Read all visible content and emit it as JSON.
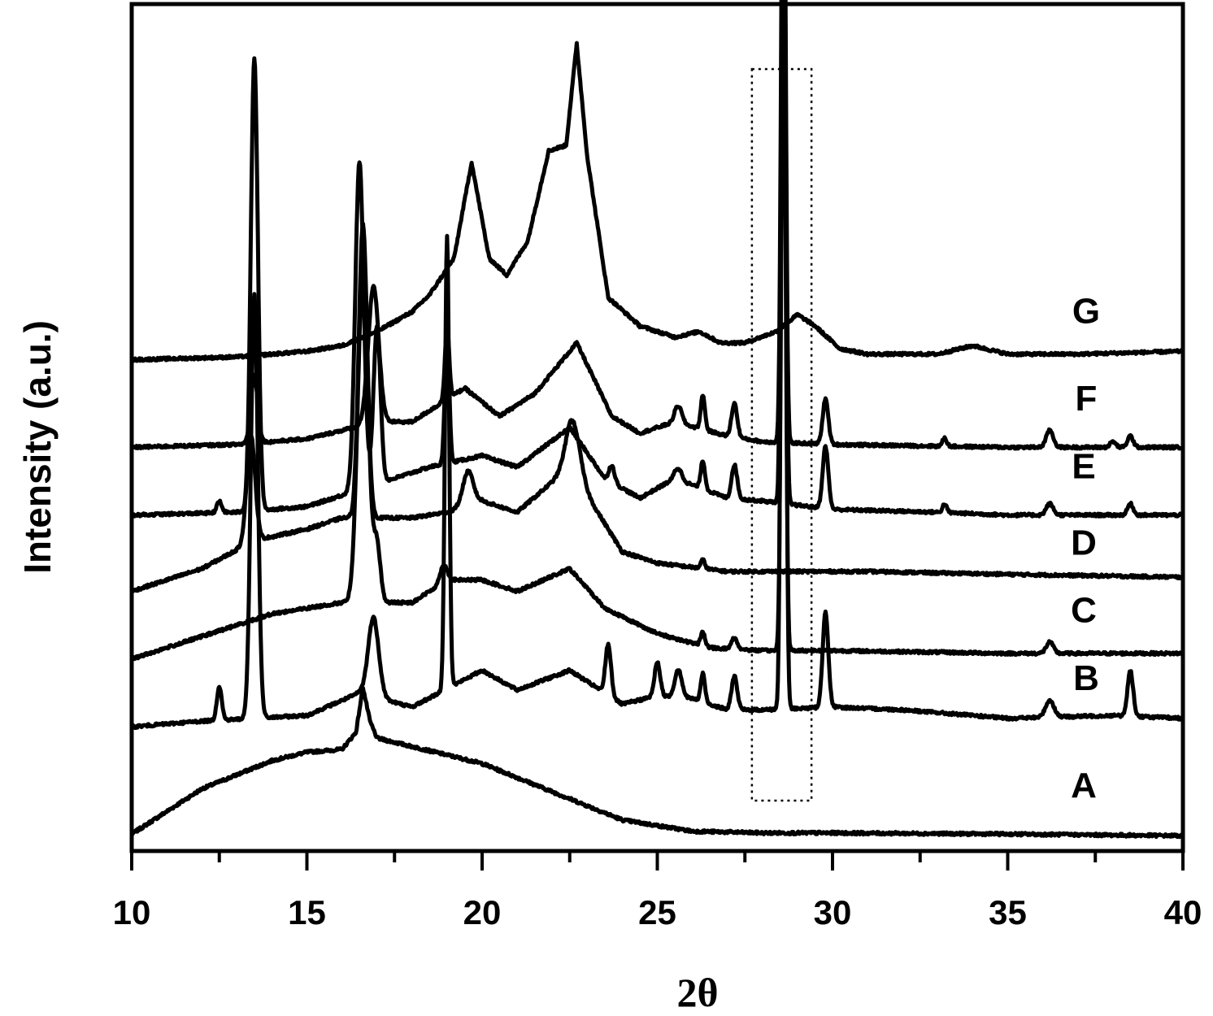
{
  "chart_data": {
    "type": "line",
    "xlabel": "2θ",
    "ylabel": "Intensity (a.u.)",
    "xlim": [
      10,
      40
    ],
    "xticks": [
      "10",
      "15",
      "20",
      "25",
      "30",
      "35",
      "40"
    ],
    "y_ticks_shown": false,
    "grid": false,
    "legend": "none; series letters printed at right end of each trace",
    "highlight_box": {
      "x_range": [
        27.7,
        29.4
      ],
      "style": "dotted"
    },
    "series": [
      {
        "name": "A",
        "baseline": 0.3,
        "x": [
          10,
          12,
          14,
          15,
          16,
          16.4,
          16.6,
          16.8,
          17,
          18,
          20,
          22,
          24,
          26,
          28,
          30,
          35,
          40
        ],
        "y": [
          0.3,
          1.1,
          1.6,
          1.75,
          1.8,
          2.1,
          2.9,
          2.3,
          2.0,
          1.85,
          1.55,
          1.05,
          0.55,
          0.35,
          0.32,
          0.32,
          0.3,
          0.27
        ],
        "peaks": []
      },
      {
        "name": "B",
        "baseline": 2.2,
        "x": [
          10,
          12,
          15,
          16.5,
          18,
          20,
          21,
          22.5,
          24,
          25,
          26,
          27,
          28,
          30,
          32,
          35,
          38,
          40
        ],
        "y": [
          2.2,
          2.3,
          2.4,
          2.8,
          2.55,
          3.2,
          2.85,
          3.2,
          2.6,
          2.75,
          2.7,
          2.5,
          2.5,
          2.55,
          2.5,
          2.35,
          2.4,
          2.35
        ],
        "peaks": [
          [
            12.5,
            0.6,
            0.07
          ],
          [
            13.5,
            7.5,
            0.1
          ],
          [
            16.9,
            1.4,
            0.15
          ],
          [
            19.0,
            8.0,
            0.06
          ],
          [
            23.6,
            0.9,
            0.08
          ],
          [
            25.0,
            0.6,
            0.08
          ],
          [
            25.6,
            0.5,
            0.1
          ],
          [
            26.3,
            0.5,
            0.06
          ],
          [
            27.2,
            0.6,
            0.08
          ],
          [
            28.6,
            17.5,
            0.06
          ],
          [
            29.8,
            1.7,
            0.08
          ],
          [
            36.2,
            0.3,
            0.12
          ],
          [
            38.5,
            0.8,
            0.08
          ]
        ]
      },
      {
        "name": "C",
        "baseline": 3.4,
        "x": [
          10,
          12,
          13,
          14,
          15,
          16,
          18,
          19,
          20,
          21,
          22.5,
          23.5,
          25,
          26.5,
          28,
          30,
          35,
          40
        ],
        "y": [
          3.4,
          3.8,
          4.0,
          4.2,
          4.3,
          4.4,
          4.4,
          4.8,
          4.8,
          4.6,
          5.0,
          4.3,
          3.85,
          3.6,
          3.55,
          3.55,
          3.5,
          3.5
        ],
        "peaks": [
          [
            16.6,
            5.8,
            0.15
          ],
          [
            17.0,
            1.0,
            0.1
          ],
          [
            18.9,
            0.3,
            0.1
          ],
          [
            26.3,
            0.25,
            0.06
          ],
          [
            27.2,
            0.2,
            0.08
          ],
          [
            28.6,
            12.5,
            0.06
          ],
          [
            36.2,
            0.2,
            0.1
          ]
        ]
      },
      {
        "name": "D",
        "baseline": 4.6,
        "x": [
          10,
          12,
          13.5,
          15,
          16,
          18,
          19,
          20,
          21,
          22.5,
          24,
          25,
          27,
          29,
          31,
          35,
          40
        ],
        "y": [
          4.6,
          5.0,
          5.5,
          5.7,
          5.9,
          5.9,
          6.0,
          6.2,
          6.0,
          6.8,
          5.3,
          5.1,
          4.95,
          4.95,
          4.95,
          4.9,
          4.85
        ],
        "peaks": [
          [
            13.4,
            1.9,
            0.12
          ],
          [
            16.6,
            5.2,
            0.12
          ],
          [
            19.6,
            0.6,
            0.15
          ],
          [
            22.6,
            0.9,
            0.2
          ],
          [
            26.3,
            0.15,
            0.06
          ]
        ]
      },
      {
        "name": "E",
        "baseline": 5.95,
        "x": [
          10,
          13,
          15,
          16,
          17.5,
          18.5,
          20,
          21,
          22.5,
          23.5,
          24.5,
          25.5,
          27,
          28,
          30,
          33,
          35,
          40
        ],
        "y": [
          5.95,
          6.0,
          6.1,
          6.3,
          6.6,
          6.8,
          7.0,
          6.8,
          7.5,
          6.6,
          6.25,
          6.6,
          6.25,
          6.2,
          6.05,
          6.0,
          5.95,
          5.95
        ],
        "peaks": [
          [
            12.5,
            0.2,
            0.07
          ],
          [
            13.5,
            8.0,
            0.1
          ],
          [
            16.5,
            5.8,
            0.12
          ],
          [
            17.0,
            2.8,
            0.1
          ],
          [
            19.0,
            2.5,
            0.06
          ],
          [
            23.7,
            0.3,
            0.08
          ],
          [
            25.6,
            0.2,
            0.1
          ],
          [
            26.3,
            0.5,
            0.06
          ],
          [
            27.2,
            0.6,
            0.08
          ],
          [
            28.6,
            13.0,
            0.06
          ],
          [
            29.8,
            1.1,
            0.08
          ],
          [
            33.2,
            0.15,
            0.06
          ],
          [
            36.2,
            0.2,
            0.1
          ],
          [
            38.5,
            0.2,
            0.08
          ]
        ]
      },
      {
        "name": "F",
        "baseline": 7.15,
        "x": [
          10,
          13,
          15,
          16,
          17,
          18,
          19.5,
          20.5,
          21.5,
          22.7,
          23.7,
          24.5,
          25.5,
          27,
          28,
          30,
          35,
          40
        ],
        "y": [
          7.15,
          7.2,
          7.3,
          7.45,
          7.6,
          7.6,
          8.2,
          7.7,
          8.1,
          9.0,
          7.7,
          7.4,
          7.6,
          7.35,
          7.25,
          7.2,
          7.15,
          7.15
        ],
        "peaks": [
          [
            13.5,
            1.2,
            0.1
          ],
          [
            16.9,
            2.4,
            0.15
          ],
          [
            19.0,
            1.3,
            0.06
          ],
          [
            25.6,
            0.3,
            0.1
          ],
          [
            26.3,
            0.6,
            0.06
          ],
          [
            27.2,
            0.6,
            0.08
          ],
          [
            28.6,
            13.0,
            0.06
          ],
          [
            29.8,
            0.8,
            0.08
          ],
          [
            33.2,
            0.15,
            0.06
          ],
          [
            36.2,
            0.3,
            0.1
          ],
          [
            38.0,
            0.1,
            0.08
          ],
          [
            38.5,
            0.2,
            0.08
          ]
        ]
      },
      {
        "name": "G",
        "baseline": 8.7,
        "x": [
          10,
          13,
          15,
          16,
          17,
          18,
          18.5,
          19.2,
          19.7,
          20.2,
          20.7,
          21.3,
          21.9,
          22.4,
          22.7,
          23.0,
          23.6,
          24.5,
          25.5,
          26.2,
          26.8,
          27.5,
          28.4,
          29.0,
          29.5,
          30.2,
          31,
          33,
          34,
          35,
          37,
          40
        ],
        "y": [
          8.7,
          8.75,
          8.85,
          8.95,
          9.2,
          9.55,
          9.85,
          10.5,
          12.2,
          10.5,
          10.2,
          10.8,
          12.4,
          12.5,
          14.3,
          12.3,
          9.8,
          9.3,
          9.1,
          9.2,
          9.0,
          9.0,
          9.2,
          9.5,
          9.3,
          8.9,
          8.8,
          8.8,
          8.95,
          8.8,
          8.8,
          8.85
        ],
        "peaks": []
      }
    ]
  }
}
